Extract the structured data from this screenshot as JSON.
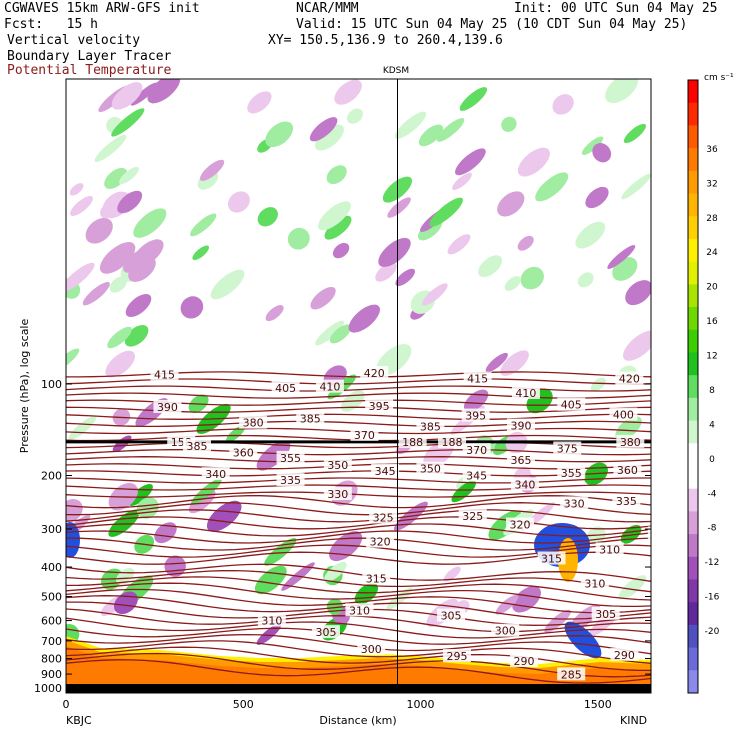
{
  "header": {
    "model": "CGWAVES 15km ARW-GFS init",
    "org": "NCAR/MMM",
    "init": "Init: 00 UTC Sun 04 May 25",
    "fcst": "Fcst:   15 h",
    "valid": "Valid: 15 UTC Sun 04 May 25 (10 CDT Sun 04 May 25)",
    "field1": "Vertical velocity",
    "field2": "Boundary Layer Tracer",
    "field3": "Potential Temperature",
    "xy": "XY= 150.5,136.9 to 260.4,139.6",
    "field3_color": "#8b1a1a"
  },
  "chart_data": {
    "type": "heatmap",
    "title": "",
    "xlabel": "Distance (km)",
    "ylabel": "Pressure (hPa), log scale",
    "xlim": [
      0,
      1650
    ],
    "x_ticks": [
      "0",
      "500",
      "1000",
      "1500"
    ],
    "y_ticks": [
      "100",
      "200",
      "300",
      "400",
      "500",
      "600",
      "700",
      "800",
      "900",
      "1000"
    ],
    "y_scale": "log",
    "station_left": "KBJC",
    "station_right": "KIND",
    "station_mid": "KDSM",
    "station_mid_x": 935,
    "colorbar": {
      "unit": "cm s⁻¹",
      "labels": [
        "36",
        "32",
        "28",
        "24",
        "20",
        "16",
        "12",
        "8",
        "4",
        "0",
        "-4",
        "-8",
        "-12",
        "-16",
        "-20"
      ],
      "colors": [
        "#ff0000",
        "#ff2a00",
        "#ff5a00",
        "#ff7a00",
        "#ff9a00",
        "#ffb400",
        "#ffd000",
        "#ffef00",
        "#e0f000",
        "#a8e400",
        "#6fd800",
        "#3ccc00",
        "#20c020",
        "#60dd60",
        "#a0eca0",
        "#d0f6d0",
        "#ffffff",
        "#ffffff",
        "#ecc8ec",
        "#d8a0d8",
        "#c078c8",
        "#a050b8",
        "#8038a8",
        "#60289c",
        "#5050c0",
        "#6a6ad8",
        "#8a8aec"
      ]
    },
    "theta_labels": [
      {
        "t": "415",
        "x": 100,
        "p": 93
      },
      {
        "t": "420",
        "x": 313,
        "p": 92
      },
      {
        "t": "415",
        "x": 418,
        "p": 96
      },
      {
        "t": "420",
        "x": 572,
        "p": 96
      },
      {
        "t": "420",
        "x": 620,
        "p": 96
      },
      {
        "t": "405",
        "x": 223,
        "p": 103
      },
      {
        "t": "410",
        "x": 268,
        "p": 102
      },
      {
        "t": "410",
        "x": 467,
        "p": 107
      },
      {
        "t": "405",
        "x": 513,
        "p": 117
      },
      {
        "t": "390",
        "x": 103,
        "p": 119
      },
      {
        "t": "395",
        "x": 318,
        "p": 118
      },
      {
        "t": "395",
        "x": 416,
        "p": 127
      },
      {
        "t": "400",
        "x": 566,
        "p": 126
      },
      {
        "t": "400",
        "x": 617,
        "p": 126
      },
      {
        "t": "380",
        "x": 190,
        "p": 134
      },
      {
        "t": "385",
        "x": 248,
        "p": 130
      },
      {
        "t": "390",
        "x": 462,
        "p": 137
      },
      {
        "t": "385",
        "x": 370,
        "p": 138
      },
      {
        "t": "370",
        "x": 303,
        "p": 147
      },
      {
        "t": "188",
        "x": 352,
        "p": 155
      },
      {
        "t": "188",
        "x": 392,
        "p": 155
      },
      {
        "t": "158",
        "x": 117,
        "p": 155
      },
      {
        "t": "385",
        "x": 133,
        "p": 160
      },
      {
        "t": "370",
        "x": 417,
        "p": 165
      },
      {
        "t": "375",
        "x": 509,
        "p": 163
      },
      {
        "t": "380",
        "x": 573,
        "p": 155
      },
      {
        "t": "380",
        "x": 620,
        "p": 155
      },
      {
        "t": "360",
        "x": 180,
        "p": 168
      },
      {
        "t": "355",
        "x": 228,
        "p": 175
      },
      {
        "t": "365",
        "x": 462,
        "p": 178
      },
      {
        "t": "350",
        "x": 276,
        "p": 185
      },
      {
        "t": "350",
        "x": 370,
        "p": 190
      },
      {
        "t": "345",
        "x": 324,
        "p": 193
      },
      {
        "t": "355",
        "x": 513,
        "p": 196
      },
      {
        "t": "360",
        "x": 570,
        "p": 192
      },
      {
        "t": "360",
        "x": 616,
        "p": 192
      },
      {
        "t": "340",
        "x": 152,
        "p": 198
      },
      {
        "t": "335",
        "x": 228,
        "p": 207
      },
      {
        "t": "345",
        "x": 417,
        "p": 200
      },
      {
        "t": "340",
        "x": 466,
        "p": 214
      },
      {
        "t": "330",
        "x": 276,
        "p": 230
      },
      {
        "t": "330",
        "x": 516,
        "p": 247
      },
      {
        "t": "335",
        "x": 569,
        "p": 243
      },
      {
        "t": "335",
        "x": 616,
        "p": 243
      },
      {
        "t": "325",
        "x": 322,
        "p": 275
      },
      {
        "t": "325",
        "x": 413,
        "p": 272
      },
      {
        "t": "320",
        "x": 461,
        "p": 290
      },
      {
        "t": "320",
        "x": 605,
        "p": 310
      },
      {
        "t": "320",
        "x": 319,
        "p": 330
      },
      {
        "t": "310",
        "x": 552,
        "p": 350
      },
      {
        "t": "315",
        "x": 493,
        "p": 375
      },
      {
        "t": "315",
        "x": 315,
        "p": 436
      },
      {
        "t": "310",
        "x": 537,
        "p": 454
      },
      {
        "t": "310",
        "x": 298,
        "p": 555
      },
      {
        "t": "305",
        "x": 391,
        "p": 578
      },
      {
        "t": "305",
        "x": 548,
        "p": 570
      },
      {
        "t": "310",
        "x": 209,
        "p": 600
      },
      {
        "t": "300",
        "x": 446,
        "p": 648
      },
      {
        "t": "305",
        "x": 264,
        "p": 655
      },
      {
        "t": "300",
        "x": 310,
        "p": 745
      },
      {
        "t": "295",
        "x": 397,
        "p": 785
      },
      {
        "t": "290",
        "x": 465,
        "p": 815
      },
      {
        "t": "290",
        "x": 567,
        "p": 778
      },
      {
        "t": "285",
        "x": 513,
        "p": 902
      }
    ]
  }
}
